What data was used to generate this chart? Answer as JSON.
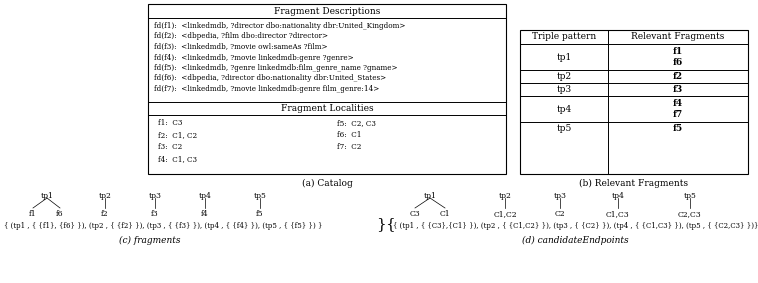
{
  "catalog_title": "Fragment Descriptions",
  "fragment_descriptions": [
    "fd(f1):  <linkedmdb, ?director dbo:nationality dbr:United_Kingdom>",
    "fd(f2):  <dbpedia, ?film dbo:director ?director>",
    "fd(f3):  <linkedmdb, ?movie owl:sameAs ?film>",
    "fd(f4):  <linkedmdb, ?movie linkedmdb:genre ?genre>",
    "fd(f5):  <linkedmdb, ?genre linkedmdb:film_genre_name ?gname>",
    "fd(f6):  <dbpedia, ?director dbo:nationality dbr:United_States>",
    "fd(f7):  <linkedmdb, ?movie linkedmdb:genre film_genre:14>"
  ],
  "localities_title": "Fragment Localities",
  "fragment_localities_left": [
    "f1:  C3",
    "f2:  C1, C2",
    "f3:  C2",
    "f4:  C1, C3"
  ],
  "fragment_localities_right": [
    "f5:  C2, C3",
    "f6:  C1",
    "f7:  C2"
  ],
  "table_header": [
    "Triple pattern",
    "Relevant Fragments"
  ],
  "table_rows_tp": [
    "tp1",
    "tp2",
    "tp3",
    "tp4",
    "tp5"
  ],
  "table_rows_frags": [
    [
      "f1",
      "f6"
    ],
    [
      "f2"
    ],
    [
      "f3"
    ],
    [
      "f4",
      "f7"
    ],
    [
      "f5"
    ]
  ],
  "caption_a": "(a) Catalog",
  "caption_b": "(b) Relevant Fragments",
  "caption_c": "(c) fragments",
  "caption_d": "(d) candidateEndpoints",
  "fragments_set": "{ (tp1 , { {f1}, {f6} }), (tp2 , { {f2} }), (tp3 , { {f3} }), (tp4 , { {f4} }), (tp5 , { {f5} }) }",
  "candidate_set": "{ (tp1 , { {C3},{C1} }), (tp2 , { {C1,C2} }), (tp3 , { {C2} }), (tp4 , { {C1,C3} }), (tp5 , { {C2,C3} })}",
  "bg_color": "#ffffff",
  "font_size": 6.5,
  "small_font": 5.5
}
